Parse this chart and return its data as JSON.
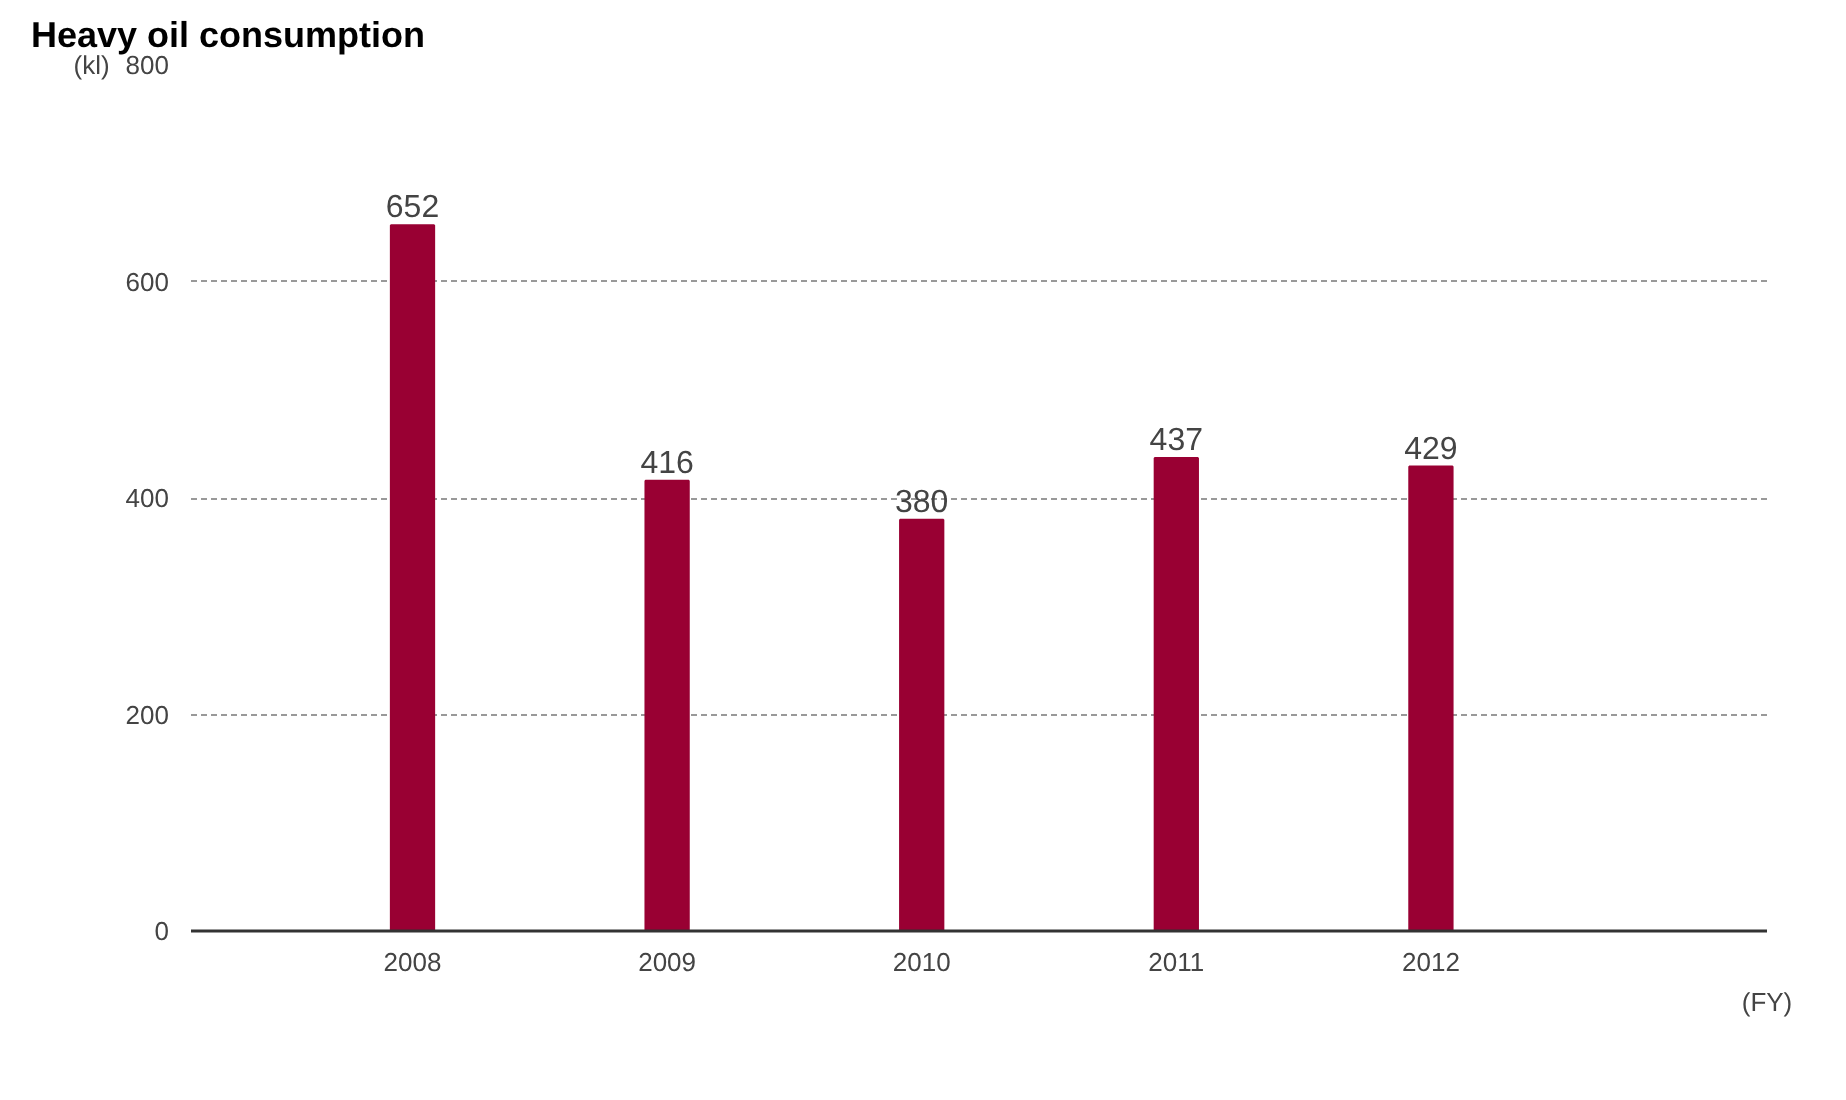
{
  "chart_data": {
    "type": "bar",
    "title": "Heavy oil consumption",
    "ylabel": "(kl)",
    "xlabel": "(FY)",
    "categories": [
      "2008",
      "2009",
      "2010",
      "2011",
      "2012"
    ],
    "values": [
      652,
      416,
      380,
      437,
      429
    ],
    "color": "#990033",
    "ylim": [
      0,
      800
    ],
    "yticks": [
      0,
      200,
      400,
      600,
      800
    ],
    "grid": "y",
    "data_labels": true
  }
}
